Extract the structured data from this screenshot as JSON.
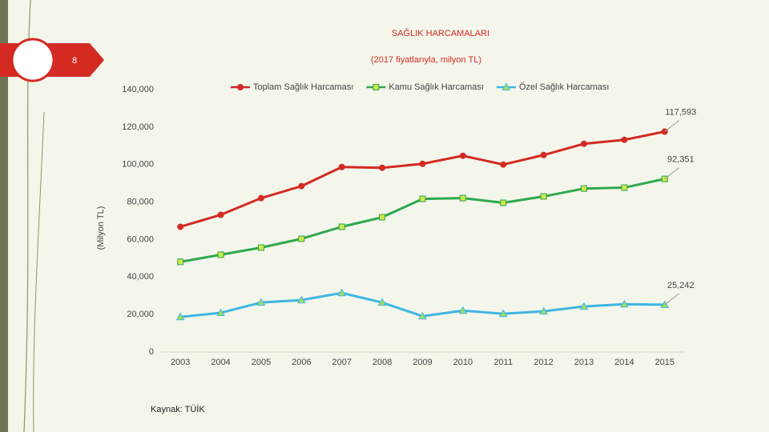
{
  "slide_number": "8",
  "source": "Kaynak: TÜİK",
  "chart_data": {
    "type": "line",
    "title": "SAĞLIK HARCAMALARI",
    "subtitle": "(2017 fiyatlarıyla, milyon TL)",
    "y_label": "(Milyon TL)",
    "categories": [
      "2003",
      "2004",
      "2005",
      "2006",
      "2007",
      "2008",
      "2009",
      "2010",
      "2011",
      "2012",
      "2013",
      "2014",
      "2015"
    ],
    "series": [
      {
        "name": "Toplam Sağlık Harcaması",
        "color": "#d42a22",
        "marker": "circle",
        "marker_fill": "#d42a22",
        "values": [
          66800,
          73200,
          82100,
          88500,
          98700,
          98300,
          100400,
          104700,
          100000,
          105100,
          111100,
          113200,
          117593
        ],
        "value_labels": [
          null,
          null,
          null,
          null,
          null,
          null,
          null,
          null,
          null,
          null,
          null,
          null,
          "117,593"
        ]
      },
      {
        "name": "Kamu Sağlık Harcaması",
        "color": "#2fa84f",
        "marker": "square",
        "marker_fill": "#cfe84a",
        "values": [
          48100,
          51900,
          55700,
          60400,
          66800,
          71900,
          81700,
          82100,
          79600,
          83000,
          87200,
          87700,
          92351
        ],
        "value_labels": [
          null,
          null,
          null,
          null,
          null,
          null,
          null,
          null,
          null,
          null,
          null,
          null,
          "92,351"
        ]
      },
      {
        "name": "Özel Sağlık Harcaması",
        "color": "#3fb6e3",
        "marker": "triangle",
        "marker_fill": "#a6dc5a",
        "values": [
          18700,
          20900,
          26400,
          27700,
          31500,
          26400,
          19100,
          22100,
          20400,
          21700,
          24300,
          25500,
          25242
        ],
        "value_labels": [
          null,
          null,
          null,
          null,
          null,
          null,
          null,
          null,
          null,
          null,
          null,
          null,
          "25,242"
        ]
      }
    ],
    "ylim": [
      0,
      140000
    ],
    "yticks": [
      0,
      {
        "value": 20000,
        "label": "20,000"
      },
      {
        "value": 40000,
        "label": "40,000"
      },
      {
        "value": 60000,
        "label": "60,000"
      },
      {
        "value": 80000,
        "label": "80,000"
      },
      {
        "value": 100000,
        "label": "100,000"
      },
      {
        "value": 120000,
        "label": "120,000"
      },
      {
        "value": 140000,
        "label": "140,000"
      }
    ],
    "grid": false,
    "legend": "top"
  }
}
